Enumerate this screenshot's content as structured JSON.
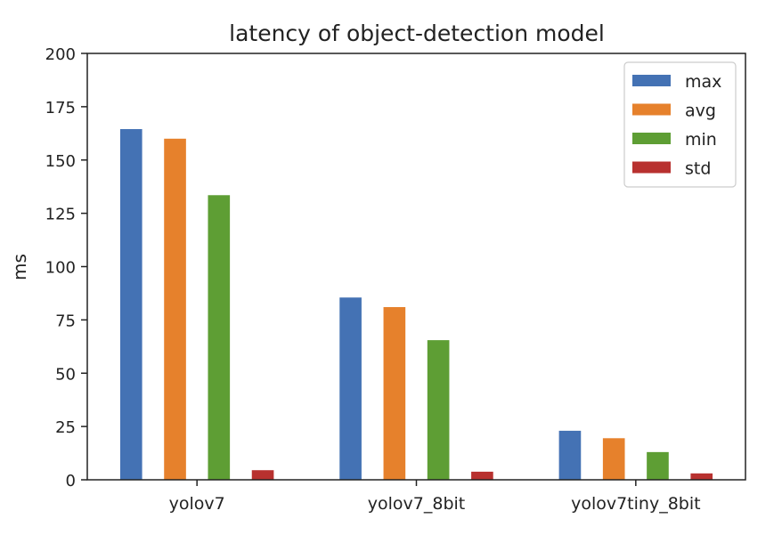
{
  "chart_data": {
    "type": "bar",
    "title": "latency of object-detection model",
    "xlabel": "",
    "ylabel": "ms",
    "ylim": [
      0,
      200
    ],
    "yticks": [
      0,
      25,
      50,
      75,
      100,
      125,
      150,
      175,
      200
    ],
    "categories": [
      "yolov7",
      "yolov7_8bit",
      "yolov7tiny_8bit"
    ],
    "series": [
      {
        "name": "max",
        "color": "#4472b4",
        "values": [
          164.5,
          85.5,
          23
        ]
      },
      {
        "name": "avg",
        "color": "#e6812c",
        "values": [
          160,
          81,
          19.5
        ]
      },
      {
        "name": "min",
        "color": "#5e9e34",
        "values": [
          133.5,
          65.5,
          13
        ]
      },
      {
        "name": "std",
        "color": "#b8312f",
        "values": [
          4.5,
          3.8,
          3
        ]
      }
    ],
    "legend_position": "top-right",
    "grid": false
  }
}
